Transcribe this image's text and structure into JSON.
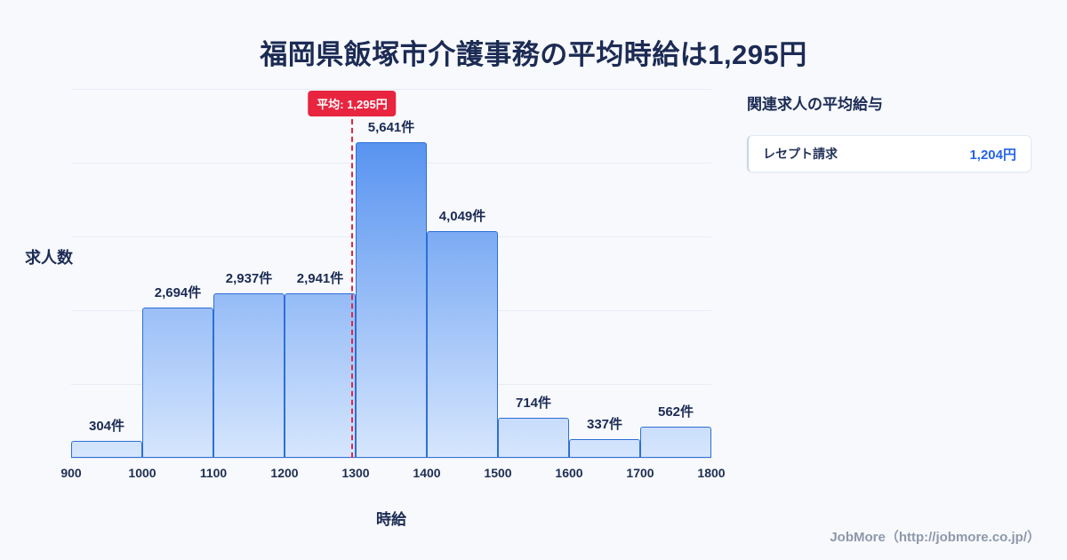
{
  "header": {
    "title": "福岡県飯塚市介護事務の平均時給は1,295円"
  },
  "chart_data": {
    "type": "bar",
    "subtype": "histogram",
    "title": "福岡県飯塚市介護事務の平均時給は1,295円",
    "xlabel": "時給",
    "ylabel": "求人数",
    "bin_edges": [
      900,
      1000,
      1100,
      1200,
      1300,
      1400,
      1500,
      1600,
      1700,
      1800
    ],
    "values": [
      304,
      2694,
      2937,
      2941,
      5641,
      4049,
      714,
      337,
      562
    ],
    "value_labels": [
      "304件",
      "2,694件",
      "2,937件",
      "2,941件",
      "5,641件",
      "4,049件",
      "714件",
      "337件",
      "562件"
    ],
    "xlim": [
      900,
      1800
    ],
    "ylim": [
      0,
      6600
    ],
    "gridline_count": 5,
    "grid": "horizontal",
    "legend": "none",
    "mean": 1295,
    "mean_label": "平均: 1,295円"
  },
  "side_panel": {
    "title": "関連求人の平均給与",
    "items": [
      {
        "label": "レセプト請求",
        "value": "1,204円"
      }
    ]
  },
  "footer": {
    "credit": "JobMore（http://jobmore.co.jp/）"
  },
  "colors": {
    "background": "#f7f9fd",
    "title_text": "#1c2b54",
    "bar_gradient_top": "#4285ee",
    "bar_gradient_bottom": "#d6e6fd",
    "bar_border": "#2d6fd6",
    "gridline": "#e7ecf4",
    "mean_accent": "#e8243f",
    "side_value_blue": "#2563eb",
    "footer_gray": "#8e98a9"
  }
}
